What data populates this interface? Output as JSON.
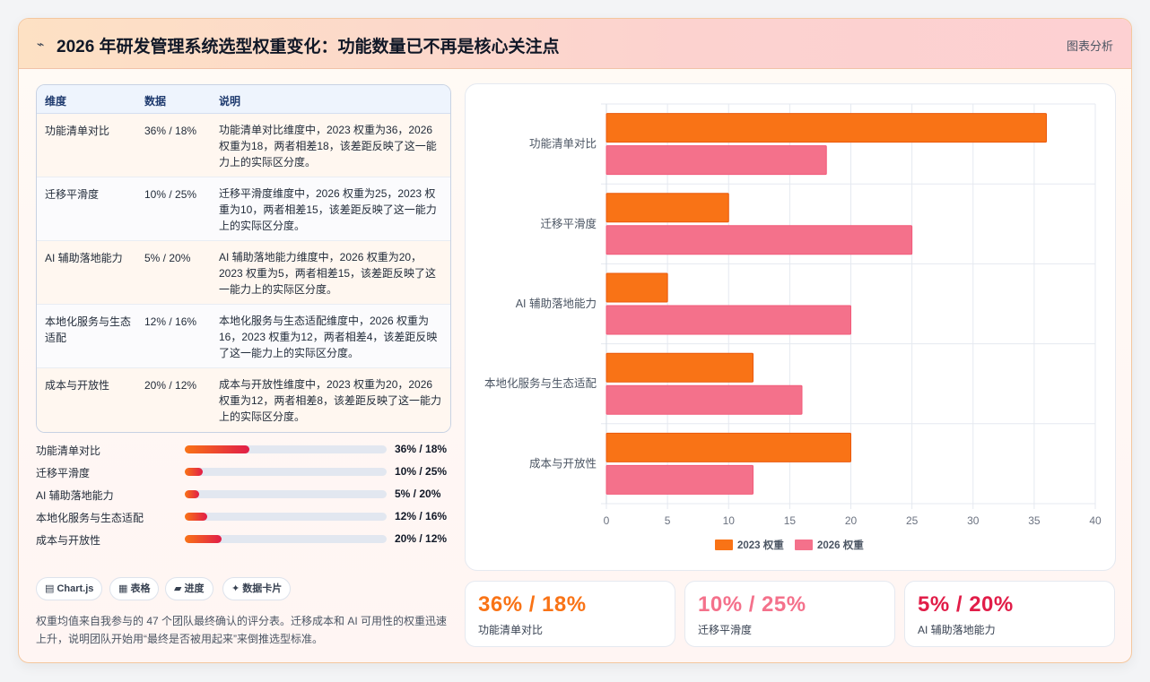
{
  "header": {
    "logo_icon": "sparkle-icon",
    "title": "2026 年研发管理系统选型权重变化：功能数量已不再是核心关注点",
    "action_label": "图表分析"
  },
  "table": {
    "headers": [
      "维度",
      "数据",
      "说明"
    ],
    "rows": [
      {
        "dim": "功能清单对比",
        "data": "36% / 18%",
        "desc": "功能清单对比维度中，2023 权重为36，2026 权重为18，两者相差18，该差距反映了这一能力上的实际区分度。"
      },
      {
        "dim": "迁移平滑度",
        "data": "10% / 25%",
        "desc": "迁移平滑度维度中，2026 权重为25，2023 权重为10，两者相差15，该差距反映了这一能力上的实际区分度。"
      },
      {
        "dim": "AI 辅助落地能力",
        "data": "5% / 20%",
        "desc": "AI 辅助落地能力维度中，2026 权重为20，2023 权重为5，两者相差15，该差距反映了这一能力上的实际区分度。"
      },
      {
        "dim": "本地化服务与生态适配",
        "data": "12% / 16%",
        "desc": "本地化服务与生态适配维度中，2026 权重为16，2023 权重为12，两者相差4，该差距反映了这一能力上的实际区分度。"
      },
      {
        "dim": "成本与开放性",
        "data": "20% / 12%",
        "desc": "成本与开放性维度中，2023 权重为20，2026 权重为12，两者相差8，该差距反映了这一能力上的实际区分度。"
      }
    ]
  },
  "progress": [
    {
      "label": "功能清单对比",
      "value": "36% / 18%",
      "fill_fraction": 0.32
    },
    {
      "label": "迁移平滑度",
      "value": "10% / 25%",
      "fill_fraction": 0.09
    },
    {
      "label": "AI 辅助落地能力",
      "value": "5% / 20%",
      "fill_fraction": 0.07
    },
    {
      "label": "本地化服务与生态适配",
      "value": "12% / 16%",
      "fill_fraction": 0.11
    },
    {
      "label": "成本与开放性",
      "value": "20% / 12%",
      "fill_fraction": 0.18
    }
  ],
  "pills": [
    {
      "icon": "chart-icon",
      "label": "▤ Chart.js"
    },
    {
      "icon": "table-icon",
      "label": "▦ 表格"
    },
    {
      "icon": "progress-icon",
      "label": "▰ 进度"
    },
    {
      "icon": "card-icon",
      "label": "✦ 数据卡片"
    }
  ],
  "note": "权重均值来自我参与的 47 个团队最终确认的评分表。迁移成本和 AI 可用性的权重迅速上升，说明团队开始用“最终是否被用起来”来倒推选型标准。",
  "kpis": [
    {
      "value": "36% / 18%",
      "label": "功能清单对比",
      "color": "#f97316"
    },
    {
      "value": "10% / 25%",
      "label": "迁移平滑度",
      "color": "#f4718b"
    },
    {
      "value": "5% / 20%",
      "label": "AI 辅助落地能力",
      "color": "#e11d48"
    }
  ],
  "colors": {
    "series_2023": "#f97316",
    "series_2026": "#f4718b"
  },
  "chart_data": {
    "type": "bar",
    "orientation": "horizontal",
    "categories": [
      "功能清单对比",
      "迁移平滑度",
      "AI 辅助落地能力",
      "本地化服务与生态适配",
      "成本与开放性"
    ],
    "series": [
      {
        "name": "2023 权重",
        "values": [
          36,
          10,
          5,
          12,
          20
        ],
        "color": "#f97316"
      },
      {
        "name": "2026 权重",
        "values": [
          18,
          25,
          20,
          16,
          12
        ],
        "color": "#f4718b"
      }
    ],
    "xlim": [
      0,
      40
    ],
    "xticks": [
      0,
      5,
      10,
      15,
      20,
      25,
      30,
      35,
      40
    ],
    "grid": true,
    "legend": "bottom",
    "title": "",
    "xlabel": "",
    "ylabel": ""
  }
}
